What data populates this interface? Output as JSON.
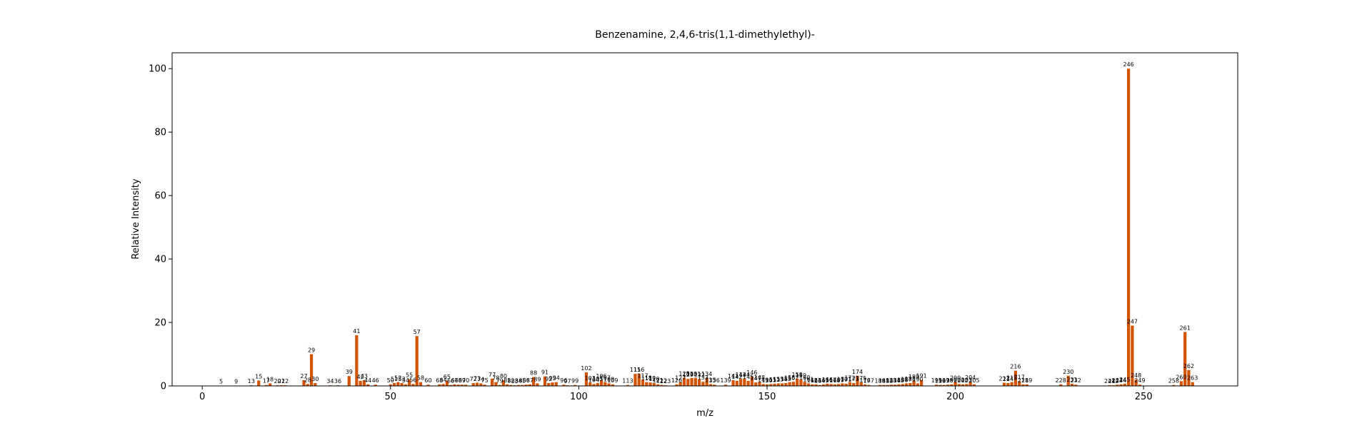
{
  "chart_data": {
    "type": "bar",
    "title": "Benzenamine, 2,4,6-tris(1,1-dimethylethyl)-",
    "xlabel": "m/z",
    "ylabel": "Relative Intensity",
    "xlim": [
      -8,
      275
    ],
    "ylim": [
      0,
      105
    ],
    "xticks": [
      "0",
      "50",
      "100",
      "150",
      "200",
      "250"
    ],
    "yticks": [
      "0",
      "20",
      "40",
      "60",
      "80",
      "100"
    ],
    "bar_color": "#d35400",
    "grid": false,
    "series": [
      {
        "x": [
          5,
          9,
          13,
          15,
          17,
          18,
          20,
          21,
          22,
          27,
          28,
          29,
          30,
          34,
          36,
          39,
          41,
          42,
          43,
          44,
          46,
          50,
          51,
          52,
          53,
          54,
          55,
          56,
          57,
          58,
          60,
          63,
          64,
          65,
          66,
          67,
          68,
          69,
          70,
          72,
          73,
          74,
          75,
          77,
          78,
          79,
          80,
          81,
          82,
          83,
          84,
          85,
          86,
          87,
          88,
          89,
          91,
          92,
          93,
          94,
          96,
          97,
          99,
          102,
          103,
          104,
          105,
          106,
          107,
          108,
          109,
          113,
          115,
          116,
          117,
          118,
          119,
          120,
          121,
          122,
          123,
          126,
          127,
          128,
          129,
          130,
          131,
          132,
          133,
          134,
          135,
          136,
          139,
          141,
          142,
          143,
          144,
          145,
          146,
          147,
          148,
          149,
          150,
          151,
          152,
          153,
          154,
          155,
          156,
          157,
          158,
          159,
          160,
          161,
          162,
          163,
          164,
          165,
          166,
          167,
          168,
          169,
          170,
          171,
          172,
          173,
          174,
          175,
          176,
          177,
          180,
          181,
          182,
          183,
          184,
          185,
          186,
          187,
          188,
          189,
          190,
          191,
          195,
          196,
          197,
          198,
          199,
          200,
          201,
          202,
          203,
          204,
          205,
          213,
          214,
          215,
          216,
          217,
          218,
          219,
          228,
          230,
          231,
          232,
          241,
          242,
          243,
          244,
          245,
          246,
          247,
          248,
          249,
          258,
          260,
          261,
          262,
          263
        ],
        "values": [
          0.1,
          0.1,
          0.2,
          1.7,
          0.3,
          0.8,
          0.2,
          0.2,
          0.2,
          1.8,
          0.6,
          10.0,
          0.9,
          0.2,
          0.2,
          3.1,
          16.0,
          1.6,
          1.8,
          0.5,
          0.4,
          0.5,
          0.9,
          1.2,
          0.9,
          0.5,
          2.1,
          0.6,
          15.7,
          1.2,
          0.4,
          0.5,
          0.6,
          1.6,
          0.3,
          0.5,
          0.4,
          0.4,
          0.4,
          0.9,
          1.0,
          0.8,
          0.4,
          2.3,
          1.2,
          0.3,
          1.8,
          0.5,
          0.3,
          0.2,
          0.3,
          0.3,
          0.4,
          0.5,
          2.8,
          0.8,
          3.0,
          0.9,
          1.1,
          1.2,
          0.4,
          0.2,
          0.3,
          4.3,
          1.1,
          0.6,
          0.9,
          1.8,
          1.2,
          0.8,
          0.5,
          0.3,
          3.8,
          3.8,
          1.9,
          1.2,
          1.1,
          0.9,
          0.5,
          0.3,
          0.2,
          0.5,
          1.2,
          2.6,
          2.2,
          2.5,
          2.5,
          2.1,
          1.3,
          2.5,
          0.6,
          0.4,
          0.4,
          1.8,
          1.6,
          2.2,
          2.3,
          1.6,
          2.9,
          1.1,
          1.3,
          0.6,
          0.5,
          0.6,
          0.7,
          0.8,
          0.8,
          0.9,
          1.2,
          1.3,
          2.3,
          2.0,
          1.3,
          0.8,
          0.5,
          0.5,
          0.3,
          0.5,
          0.7,
          0.6,
          0.5,
          0.6,
          0.8,
          0.7,
          1.2,
          0.9,
          3.2,
          1.1,
          0.5,
          0.3,
          0.3,
          0.3,
          0.3,
          0.4,
          0.4,
          0.5,
          0.6,
          0.8,
          0.9,
          1.6,
          0.8,
          1.9,
          0.4,
          0.3,
          0.3,
          0.4,
          0.5,
          1.2,
          0.6,
          0.5,
          0.6,
          1.3,
          0.5,
          1.0,
          0.9,
          1.2,
          4.8,
          1.5,
          0.5,
          0.5,
          0.5,
          3.2,
          0.7,
          0.4,
          0.2,
          0.2,
          0.4,
          0.5,
          0.7,
          100.0,
          19.0,
          2.0,
          0.4,
          0.3,
          1.5,
          17.0,
          5.0,
          1.2
        ],
        "labels": [
          "5",
          "9",
          "13",
          "15",
          "17",
          "18",
          "20",
          "21",
          "22",
          "27",
          "28",
          "29",
          "30",
          "34",
          "36",
          "39",
          "41",
          "42",
          "43",
          "44",
          "46",
          "50",
          "51",
          "52",
          "53",
          "54",
          "55",
          "56",
          "57",
          "58",
          "60",
          "63",
          "64",
          "65",
          "66",
          "67",
          "68",
          "69",
          "70",
          "72",
          "73",
          "74",
          "75",
          "77",
          "78",
          "79",
          "80",
          "81",
          "82",
          "83",
          "84",
          "85",
          "86",
          "87",
          "88",
          "89",
          "91",
          "92",
          "93",
          "94",
          "96",
          "97",
          "99",
          "102",
          "103",
          "104",
          "105",
          "106",
          "107",
          "108",
          "109",
          "113",
          "115",
          "116",
          "117",
          "118",
          "119",
          "120",
          "121",
          "122",
          "123",
          "126",
          "127",
          "128",
          "129",
          "130",
          "131",
          "132",
          "133",
          "134",
          "135",
          "136",
          "139",
          "141",
          "142",
          "143",
          "144",
          "145",
          "146",
          "147",
          "148",
          "149",
          "150",
          "151",
          "152",
          "153",
          "154",
          "155",
          "156",
          "157",
          "158",
          "159",
          "160",
          "161",
          "162",
          "163",
          "164",
          "165",
          "166",
          "167",
          "168",
          "169",
          "170",
          "171",
          "172",
          "173",
          "174",
          "175",
          "176",
          "177",
          "180",
          "181",
          "182",
          "183",
          "184",
          "185",
          "186",
          "187",
          "188",
          "189",
          "190",
          "191",
          "195",
          "196",
          "197",
          "198",
          "199",
          "200",
          "201",
          "202",
          "203",
          "204",
          "205",
          "213",
          "214",
          "215",
          "216",
          "217",
          "218",
          "219",
          "228",
          "230",
          "231",
          "232",
          "241",
          "242",
          "243",
          "244",
          "245",
          "246",
          "247",
          "248",
          "249",
          "258",
          "260",
          "261",
          "262",
          "263"
        ]
      }
    ]
  }
}
